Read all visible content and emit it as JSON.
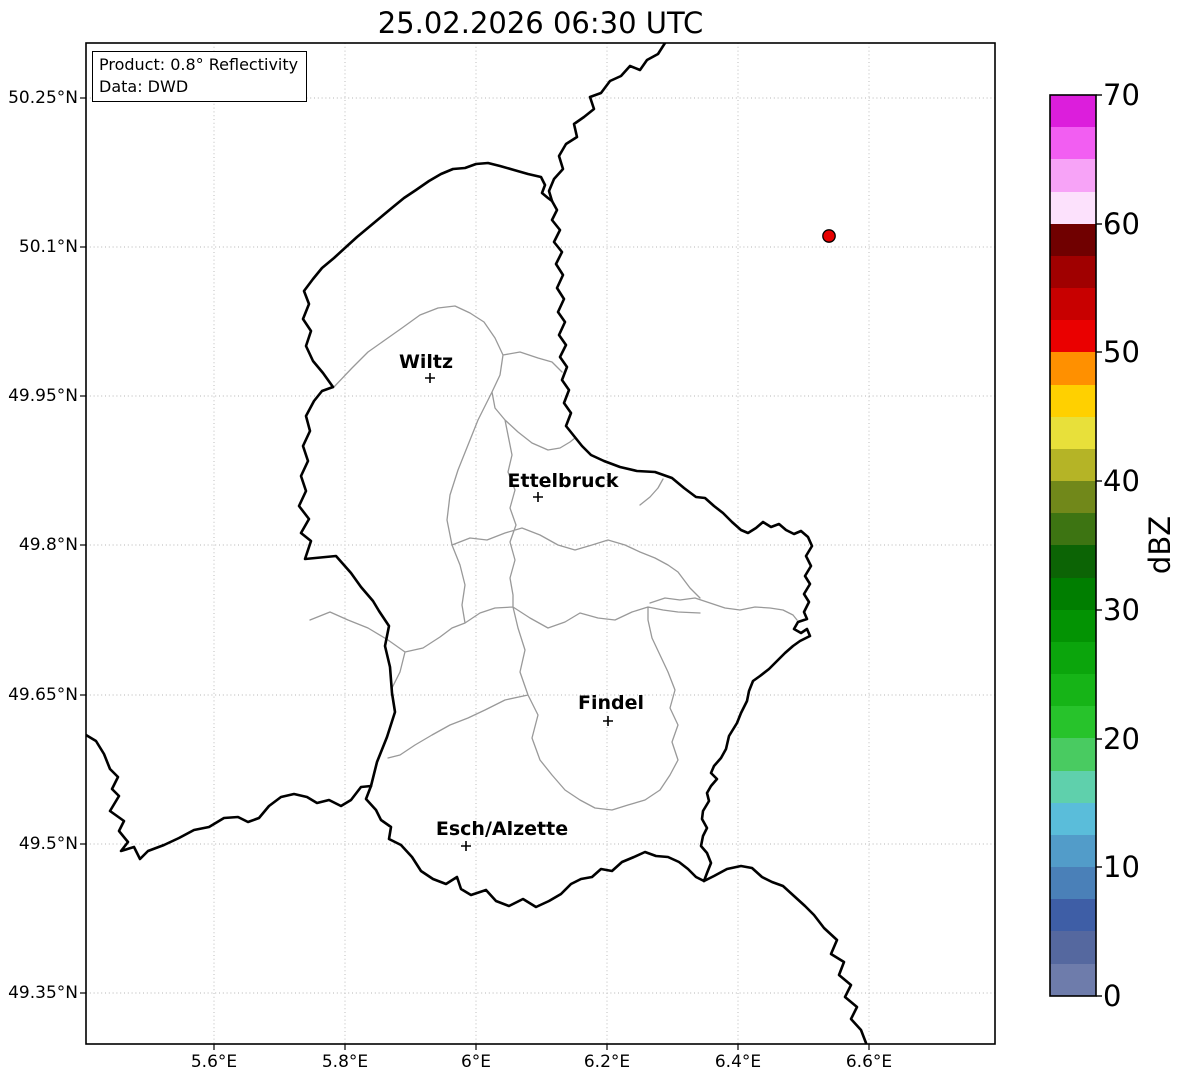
{
  "title": "25.02.2026 06:30 UTC",
  "info_box": {
    "product": "Product: 0.8° Reflectivity",
    "data_source": "Data: DWD"
  },
  "axes": {
    "lat_ticks": [
      "50.25°N",
      "50.1°N",
      "49.95°N",
      "49.8°N",
      "49.65°N",
      "49.5°N",
      "49.35°N"
    ],
    "lon_ticks": [
      "5.6°E",
      "5.8°E",
      "6°E",
      "6.2°E",
      "6.4°E",
      "6.6°E"
    ]
  },
  "map": {
    "cities": [
      {
        "name": "Wiltz",
        "marker": "+"
      },
      {
        "name": "Ettelbruck",
        "marker": "+"
      },
      {
        "name": "Findel",
        "marker": "+"
      },
      {
        "name": "Esch/Alzette",
        "marker": "+"
      }
    ],
    "radar_marker_color": "#e60000",
    "country_border_color": "#000000",
    "district_border_color": "#999999"
  },
  "colorbar": {
    "label": "dBZ",
    "ticks": [
      "0",
      "10",
      "20",
      "30",
      "40",
      "50",
      "60",
      "70"
    ],
    "value_range": [
      0,
      70
    ],
    "segment_step_dbz": 2.5,
    "segment_colors_bottom_to_top": [
      "#6e7cab",
      "#55689f",
      "#3e5ea6",
      "#4a80b8",
      "#529cc9",
      "#5abdda",
      "#5fd0ac",
      "#49cb61",
      "#27c32b",
      "#16b417",
      "#0ba50c",
      "#039303",
      "#007e00",
      "#0c6405",
      "#3d7412",
      "#71881a",
      "#b5b426",
      "#e8e03a",
      "#ffd000",
      "#ff9000",
      "#ea0000",
      "#c80000",
      "#a00000",
      "#700000",
      "#fce1fc",
      "#f7a3f7",
      "#f25ef2",
      "#dc1edc"
    ]
  }
}
